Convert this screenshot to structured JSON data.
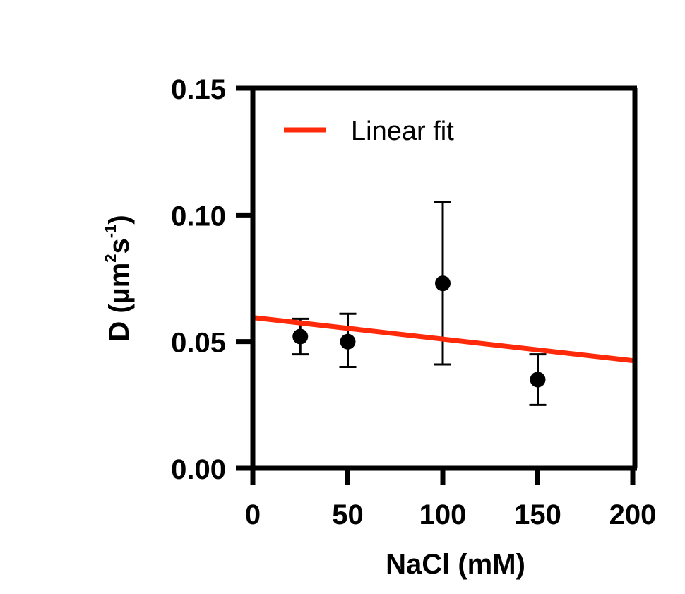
{
  "chart_data": {
    "type": "scatter",
    "xlabel": "NaCl (mM)",
    "ylabel": {
      "prefix": "D (µm",
      "sup1": "2",
      "mid": "s",
      "sup2": "-1",
      "suffix": ")"
    },
    "xlim": [
      0,
      200
    ],
    "ylim": [
      0,
      0.15
    ],
    "xticks": [
      0,
      50,
      100,
      150,
      200
    ],
    "xtick_labels": [
      "0",
      "50",
      "100",
      "150",
      "200"
    ],
    "yticks": [
      0,
      0.05,
      0.1,
      0.15
    ],
    "ytick_labels": [
      "0.00",
      "0.05",
      "0.10",
      "0.15"
    ],
    "grid": false,
    "legend_position": "top-left",
    "series": [
      {
        "kind": "points_with_error_bars",
        "color": "#000000",
        "points": [
          {
            "x": 25,
            "y": 0.052,
            "err_low": 0.045,
            "err_high": 0.059
          },
          {
            "x": 50,
            "y": 0.05,
            "err_low": 0.04,
            "err_high": 0.061
          },
          {
            "x": 100,
            "y": 0.073,
            "err_low": 0.041,
            "err_high": 0.105
          },
          {
            "x": 150,
            "y": 0.035,
            "err_low": 0.025,
            "err_high": 0.045
          }
        ]
      },
      {
        "kind": "line",
        "name": "Linear fit",
        "color": "#ff2a0a",
        "x": [
          0,
          200
        ],
        "y": [
          0.0595,
          0.0425
        ]
      }
    ]
  }
}
